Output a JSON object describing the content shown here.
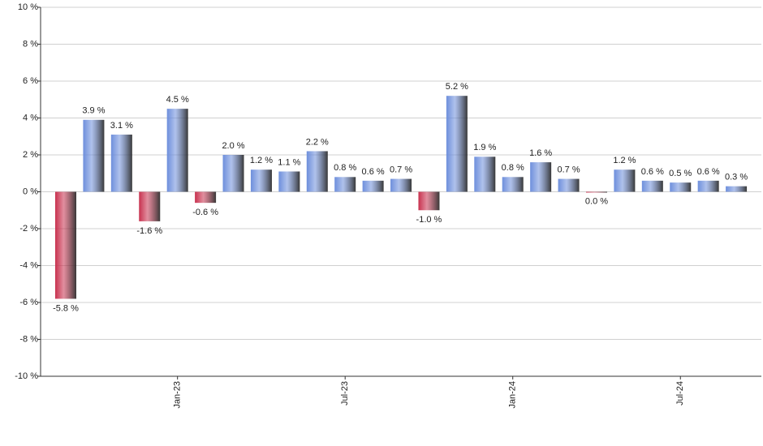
{
  "chart_data": {
    "type": "bar",
    "categories": [
      null,
      null,
      null,
      null,
      "Jan-23",
      null,
      null,
      null,
      null,
      null,
      "Jul-23",
      null,
      null,
      null,
      null,
      null,
      "Jan-24",
      null,
      null,
      null,
      null,
      null,
      "Jul-24",
      null,
      null
    ],
    "values": [
      -5.8,
      3.9,
      3.1,
      -1.6,
      4.5,
      -0.6,
      2.0,
      1.2,
      1.1,
      2.2,
      0.8,
      0.6,
      0.7,
      -1.0,
      5.2,
      1.9,
      0.8,
      1.6,
      0.7,
      0.0,
      1.2,
      0.6,
      0.5,
      0.6,
      0.3
    ],
    "value_labels": [
      "-5.8 %",
      "3.9 %",
      "3.1 %",
      "-1.6 %",
      "4.5 %",
      "-0.6 %",
      "2.0 %",
      "1.2 %",
      "1.1 %",
      "2.2 %",
      "0.8 %",
      "0.6 %",
      "0.7 %",
      "-1.0 %",
      "5.2 %",
      "1.9 %",
      "0.8 %",
      "1.6 %",
      "0.7 %",
      "0.0 %",
      "1.2 %",
      "0.6 %",
      "0.5 %",
      "0.6 %",
      "0.3 %"
    ],
    "positive_color": "#6e8fdc",
    "negative_color": "#c8324f",
    "ylim": [
      -10,
      10
    ],
    "yticks": [
      {
        "value": -10,
        "label": "-10 %"
      },
      {
        "value": -8,
        "label": "-8 %"
      },
      {
        "value": -6,
        "label": "-6 %"
      },
      {
        "value": -4,
        "label": "-4 %"
      },
      {
        "value": -2,
        "label": "-2 %"
      },
      {
        "value": 0,
        "label": "0 %"
      },
      {
        "value": 2,
        "label": "2 %"
      },
      {
        "value": 4,
        "label": "4 %"
      },
      {
        "value": 6,
        "label": "6 %"
      },
      {
        "value": 8,
        "label": "8 %"
      },
      {
        "value": 10,
        "label": "10 %"
      }
    ],
    "grid": true
  }
}
